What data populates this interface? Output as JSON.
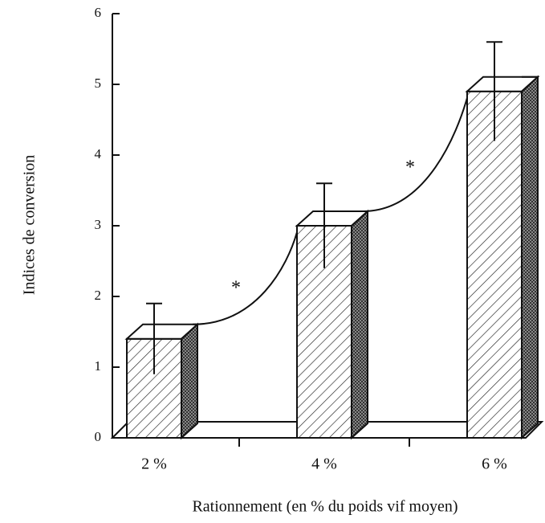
{
  "chart_data": {
    "type": "bar",
    "y_label": "Indices de conversion",
    "x_label": "Rationnement (en % du poids vif moyen)",
    "categories": [
      "2 %",
      "4 %",
      "6 %"
    ],
    "values": [
      1.4,
      3.0,
      4.9
    ],
    "errors": [
      0.5,
      0.6,
      0.7
    ],
    "ylim": [
      0,
      6
    ],
    "yticks": [
      0,
      1,
      2,
      3,
      4,
      5,
      6
    ],
    "annotations": [
      "*",
      "*"
    ],
    "grid": false
  }
}
